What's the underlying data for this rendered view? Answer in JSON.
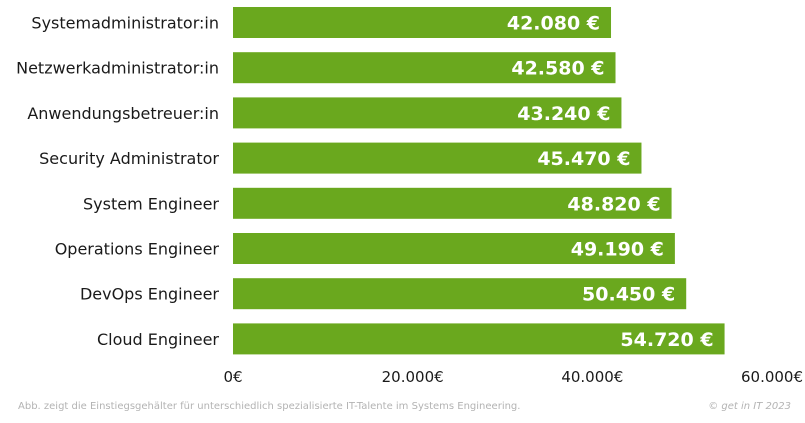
{
  "chart_data": {
    "type": "bar",
    "orientation": "horizontal",
    "categories": [
      "Systemadministrator:in",
      "Netzwerkadministrator:in",
      "Anwendungsbetreuer:in",
      "Security Administrator",
      "System Engineer",
      "Operations Engineer",
      "DevOps Engineer",
      "Cloud Engineer"
    ],
    "values": [
      42080,
      42580,
      43240,
      45470,
      48820,
      49190,
      50450,
      54720
    ],
    "value_labels": [
      "42.080 €",
      "42.580 €",
      "43.240 €",
      "45.470 €",
      "48.820 €",
      "49.190 €",
      "50.450 €",
      "54.720 €"
    ],
    "xlim": [
      0,
      60000
    ],
    "x_ticks": [
      0,
      20000,
      40000,
      60000
    ],
    "x_tick_labels": [
      "0€",
      "20.000€",
      "40.000€",
      "60.000€"
    ],
    "grid": false,
    "bar_color": "#6aa81e"
  },
  "footer": {
    "caption": "Abb. zeigt die Einstiegsgehälter für unterschiedlich spezialisierte IT-Talente im Systems Engineering.",
    "copyright": "© get in IT 2023"
  }
}
